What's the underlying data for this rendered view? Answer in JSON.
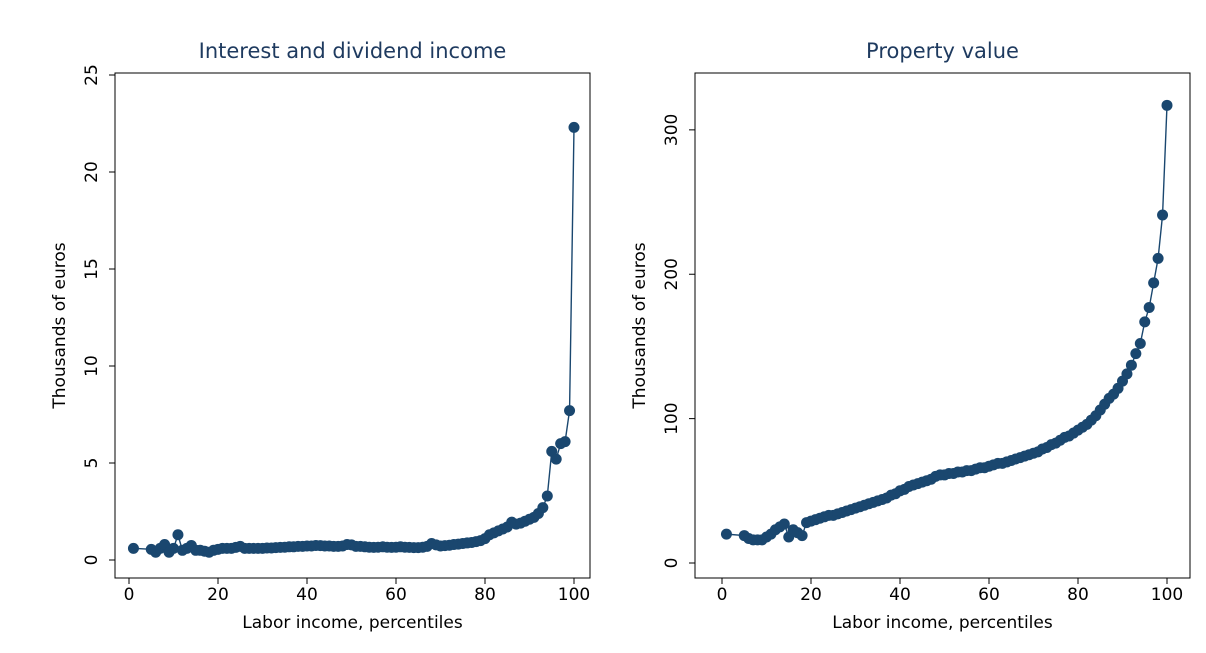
{
  "chart_data": [
    {
      "type": "line",
      "title": "Interest and dividend income",
      "xlabel": "Labor income, percentiles",
      "ylabel": "Thousands of euros",
      "x": [
        1,
        5,
        6,
        7,
        8,
        9,
        10,
        11,
        12,
        13,
        14,
        15,
        16,
        17,
        18,
        19,
        20,
        21,
        22,
        23,
        24,
        25,
        26,
        27,
        28,
        29,
        30,
        31,
        32,
        33,
        34,
        35,
        36,
        37,
        38,
        39,
        40,
        41,
        42,
        43,
        44,
        45,
        46,
        47,
        48,
        49,
        50,
        51,
        52,
        53,
        54,
        55,
        56,
        57,
        58,
        59,
        60,
        61,
        62,
        63,
        64,
        65,
        66,
        67,
        68,
        69,
        70,
        71,
        72,
        73,
        74,
        75,
        76,
        77,
        78,
        79,
        80,
        81,
        82,
        83,
        84,
        85,
        86,
        87,
        88,
        89,
        90,
        91,
        92,
        93,
        94,
        95,
        96,
        97,
        98,
        99,
        100
      ],
      "series": [
        {
          "color": "#1a476f",
          "values": [
            0.6,
            0.55,
            0.4,
            0.6,
            0.8,
            0.4,
            0.6,
            1.3,
            0.5,
            0.6,
            0.75,
            0.5,
            0.5,
            0.45,
            0.4,
            0.5,
            0.55,
            0.6,
            0.6,
            0.6,
            0.65,
            0.7,
            0.6,
            0.6,
            0.6,
            0.6,
            0.6,
            0.62,
            0.62,
            0.64,
            0.65,
            0.66,
            0.68,
            0.68,
            0.7,
            0.7,
            0.72,
            0.72,
            0.75,
            0.74,
            0.72,
            0.72,
            0.7,
            0.7,
            0.72,
            0.8,
            0.78,
            0.7,
            0.7,
            0.68,
            0.66,
            0.65,
            0.66,
            0.68,
            0.66,
            0.65,
            0.66,
            0.68,
            0.66,
            0.65,
            0.64,
            0.64,
            0.66,
            0.7,
            0.85,
            0.78,
            0.72,
            0.74,
            0.76,
            0.8,
            0.82,
            0.85,
            0.88,
            0.9,
            0.95,
            1.0,
            1.1,
            1.3,
            1.4,
            1.5,
            1.6,
            1.7,
            1.95,
            1.85,
            1.9,
            2.0,
            2.1,
            2.2,
            2.4,
            2.7,
            3.3,
            5.6,
            5.2,
            6.0,
            6.1,
            7.7,
            22.3
          ]
        }
      ],
      "xlim": [
        0,
        100
      ],
      "xticks": [
        0,
        20,
        40,
        60,
        80,
        100
      ],
      "ylim": [
        0,
        25
      ],
      "yticks": [
        0,
        5,
        10,
        15,
        20,
        25
      ]
    },
    {
      "type": "line",
      "title": "Property value",
      "xlabel": "Labor income, percentiles",
      "ylabel": "Thousands of euros",
      "x": [
        1,
        5,
        6,
        7,
        8,
        9,
        10,
        11,
        12,
        13,
        14,
        15,
        16,
        17,
        18,
        19,
        20,
        21,
        22,
        23,
        24,
        25,
        26,
        27,
        28,
        29,
        30,
        31,
        32,
        33,
        34,
        35,
        36,
        37,
        38,
        39,
        40,
        41,
        42,
        43,
        44,
        45,
        46,
        47,
        48,
        49,
        50,
        51,
        52,
        53,
        54,
        55,
        56,
        57,
        58,
        59,
        60,
        61,
        62,
        63,
        64,
        65,
        66,
        67,
        68,
        69,
        70,
        71,
        72,
        73,
        74,
        75,
        76,
        77,
        78,
        79,
        80,
        81,
        82,
        83,
        84,
        85,
        86,
        87,
        88,
        89,
        90,
        91,
        92,
        93,
        94,
        95,
        96,
        97,
        98,
        99,
        100
      ],
      "series": [
        {
          "color": "#1a476f",
          "values": [
            20,
            19,
            17,
            16,
            16,
            16,
            18,
            20,
            23,
            25,
            27,
            18,
            23,
            21,
            19,
            28,
            29,
            30,
            31,
            32,
            33,
            33,
            34,
            35,
            36,
            37,
            38,
            39,
            40,
            41,
            42,
            43,
            44,
            45,
            47,
            48,
            50,
            51,
            53,
            54,
            55,
            56,
            57,
            58,
            60,
            61,
            61,
            62,
            62,
            63,
            63,
            64,
            64,
            65,
            66,
            66,
            67,
            68,
            69,
            69,
            70,
            71,
            72,
            73,
            74,
            75,
            76,
            77,
            79,
            80,
            82,
            83,
            85,
            87,
            88,
            90,
            92,
            94,
            96,
            99,
            102,
            106,
            110,
            114,
            117,
            121,
            126,
            131,
            137,
            145,
            152,
            167,
            177,
            194,
            211,
            241,
            317
          ]
        }
      ],
      "xlim": [
        0,
        100
      ],
      "xticks": [
        0,
        20,
        40,
        60,
        80,
        100
      ],
      "ylim": [
        0,
        338
      ],
      "yticks": [
        0,
        100,
        200,
        300
      ]
    }
  ]
}
